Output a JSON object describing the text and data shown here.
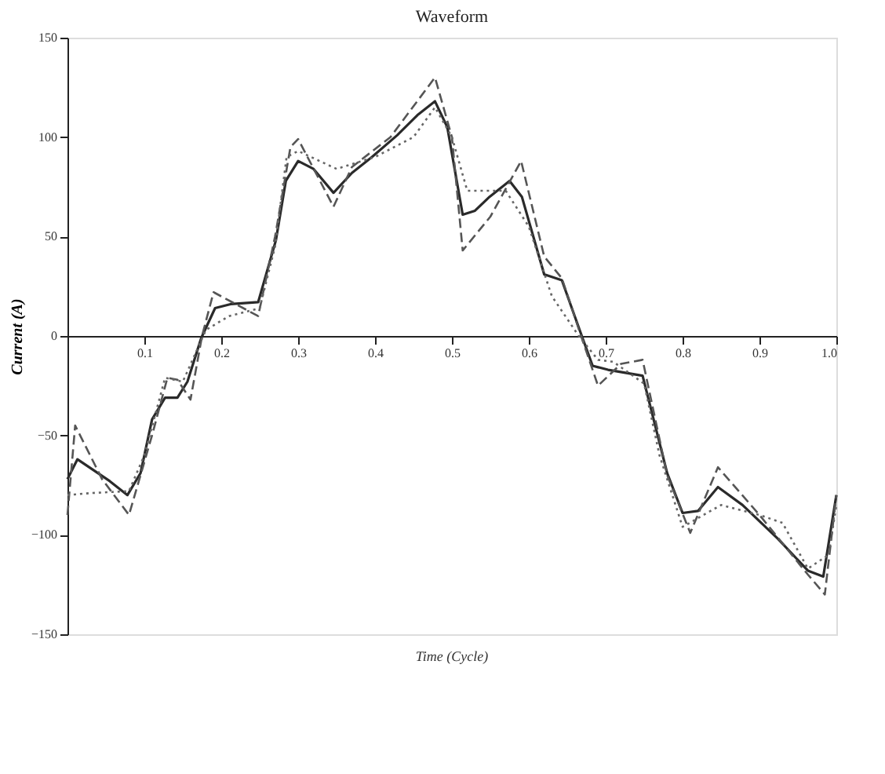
{
  "chart_data": {
    "type": "line",
    "title": "Waveform",
    "xlabel": "Time (Cycle)",
    "ylabel": "Current (A)",
    "xlim": [
      0,
      1.0
    ],
    "xticks": [
      0.1,
      0.2,
      0.3,
      0.4,
      0.5,
      0.6,
      0.7,
      0.8,
      0.9,
      {
        "value": 1.0,
        "label": "1.0"
      }
    ],
    "ylim": [
      -150,
      150
    ],
    "yticks": [
      -150,
      -100,
      -50,
      0,
      50,
      100,
      150
    ],
    "grid": false,
    "marker": "none",
    "series": [
      {
        "color": "#2a2a2a",
        "line_style": "solid",
        "x": [
          0,
          0.013,
          0.055,
          0.078,
          0.095,
          0.11,
          0.127,
          0.143,
          0.156,
          0.174,
          0.192,
          0.212,
          0.248,
          0.271,
          0.284,
          0.3,
          0.32,
          0.346,
          0.37,
          0.396,
          0.429,
          0.455,
          0.478,
          0.494,
          0.514,
          0.53,
          0.549,
          0.575,
          0.591,
          0.62,
          0.643,
          0.668,
          0.683,
          0.703,
          0.748,
          0.78,
          0.8,
          0.82,
          0.846,
          0.878,
          0.924,
          0.963,
          0.983,
          1.0
        ],
        "values": [
          -72,
          -62,
          -73,
          -80,
          -69,
          -42,
          -31,
          -31,
          -23,
          -1,
          14,
          16,
          17,
          48,
          78,
          88,
          84,
          72,
          82,
          90,
          101,
          111,
          118,
          105,
          61,
          63,
          70,
          78,
          70,
          31,
          28,
          1,
          -15,
          -17,
          -20,
          -69,
          -89,
          -88,
          -76,
          -85,
          -102,
          -118,
          -121,
          -80
        ]
      },
      {
        "color": "#555555",
        "line_style": "dashed",
        "x": [
          0,
          0.01,
          0.045,
          0.08,
          0.11,
          0.13,
          0.143,
          0.16,
          0.175,
          0.19,
          0.248,
          0.27,
          0.29,
          0.3,
          0.346,
          0.37,
          0.42,
          0.478,
          0.5,
          0.514,
          0.55,
          0.59,
          0.62,
          0.643,
          0.668,
          0.69,
          0.72,
          0.748,
          0.78,
          0.81,
          0.846,
          0.9,
          0.963,
          0.985,
          1.0
        ],
        "values": [
          -90,
          -45,
          -72,
          -90,
          -50,
          -21,
          -22,
          -32,
          0,
          22,
          10,
          50,
          95,
          99,
          65,
          85,
          100,
          130,
          100,
          43,
          60,
          88,
          40,
          29,
          0,
          -25,
          -14,
          -12,
          -70,
          -99,
          -66,
          -90,
          -120,
          -130,
          -80
        ]
      },
      {
        "color": "#666666",
        "line_style": "dotted",
        "x": [
          0,
          0.03,
          0.08,
          0.1,
          0.127,
          0.15,
          0.165,
          0.18,
          0.21,
          0.25,
          0.27,
          0.285,
          0.3,
          0.35,
          0.4,
          0.45,
          0.478,
          0.5,
          0.52,
          0.57,
          0.6,
          0.63,
          0.665,
          0.69,
          0.71,
          0.75,
          0.77,
          0.8,
          0.85,
          0.9,
          0.93,
          0.963,
          0.99,
          1.0
        ],
        "values": [
          -80,
          -79,
          -78,
          -60,
          -21,
          -23,
          -10,
          3,
          10,
          14,
          45,
          90,
          93,
          84,
          90,
          100,
          115,
          100,
          73,
          73,
          55,
          20,
          0,
          -12,
          -13,
          -24,
          -60,
          -96,
          -85,
          -90,
          -94,
          -117,
          -110,
          -85
        ]
      }
    ]
  }
}
